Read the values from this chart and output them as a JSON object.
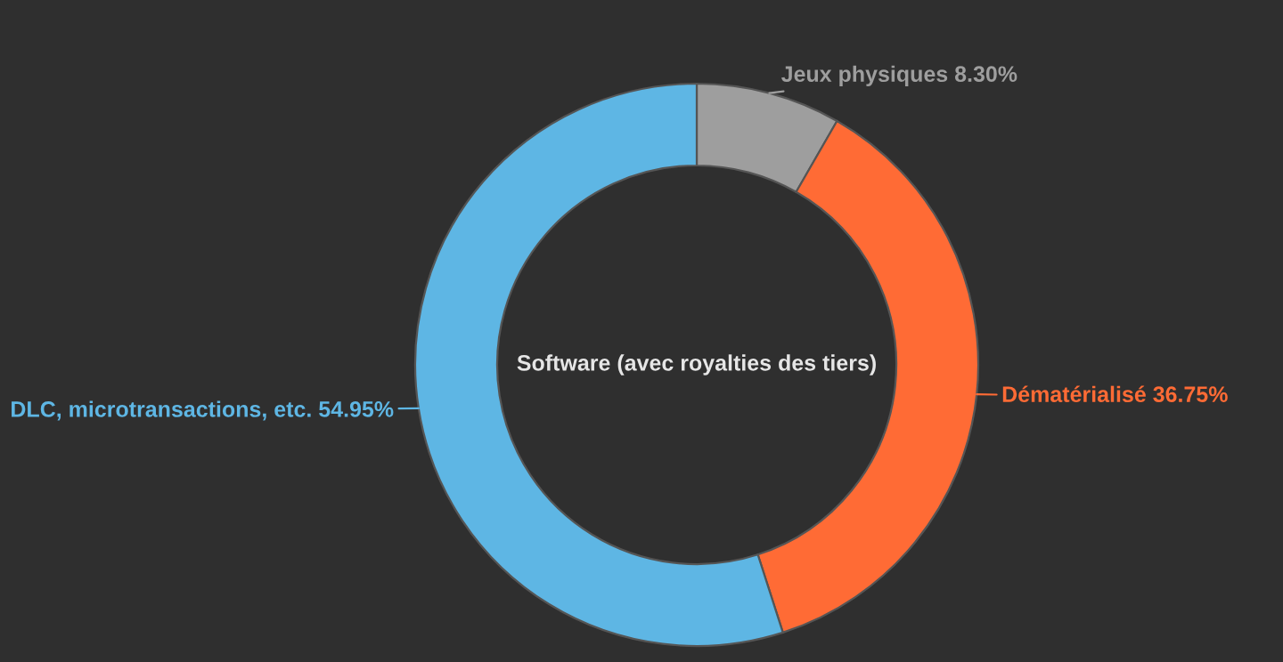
{
  "chart_data": {
    "type": "donut",
    "title": "Software (avec royalties des tiers)",
    "categories": [
      "Jeux physiques",
      "Dématérialisé",
      "DLC, microtransactions, etc."
    ],
    "values": [
      8.3,
      36.75,
      54.95
    ],
    "value_labels": [
      "8.30%",
      "36.75%",
      "54.95%"
    ],
    "colors": [
      "#9e9e9e",
      "#ff6b35",
      "#5eb6e4"
    ],
    "legend": false
  }
}
